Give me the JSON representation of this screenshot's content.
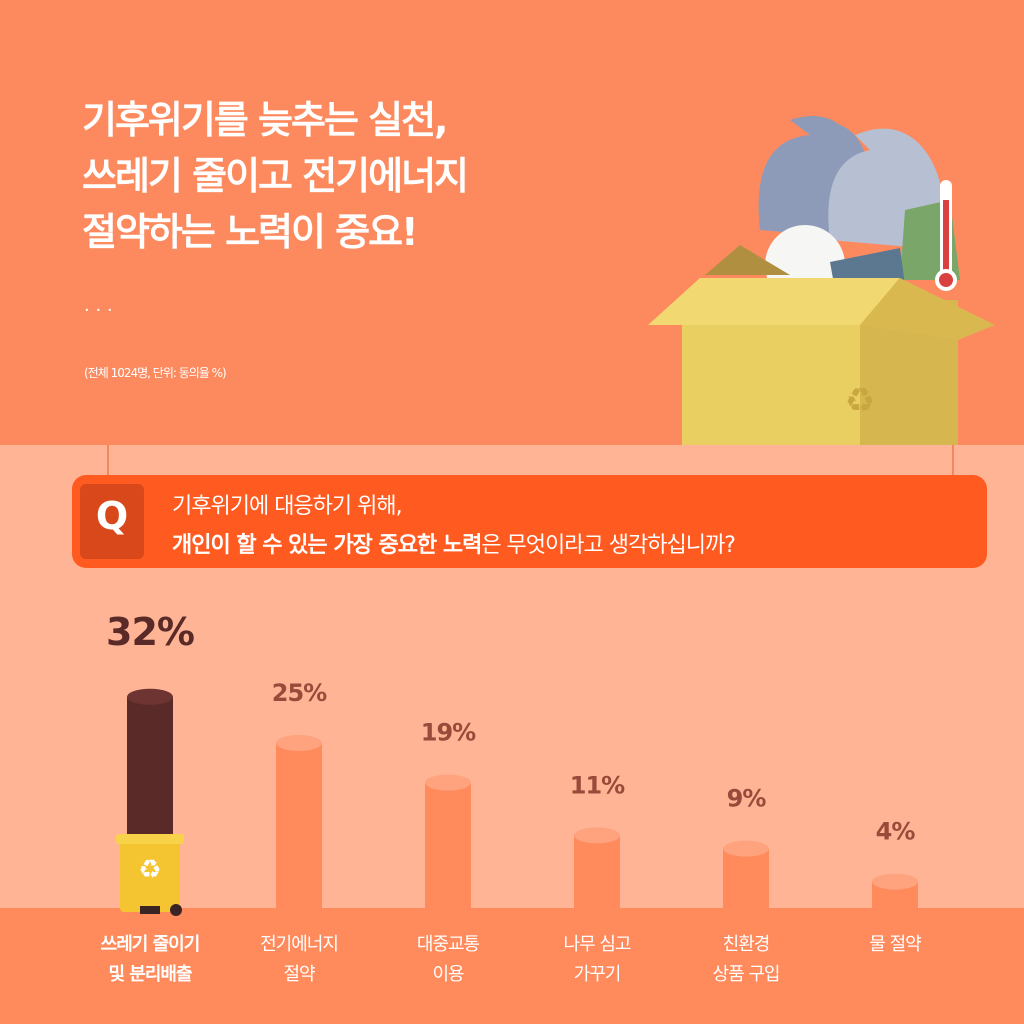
{
  "chart_data": {
    "type": "bar",
    "title": "기후위기를 늦추는 실천,\n쓰레기 줄이고 전기에너지\n절약하는 노력이 중요!",
    "ellipsis": "· · ·",
    "note": "(전체 1024명, 단위: 동의율 %)",
    "question_mark": "Q",
    "question_line1": "기후위기에 대응하기 위해,",
    "question_bold": "개인이 할 수 있는 가장 중요한 노력",
    "question_rest": "은 무엇이라고 생각하십니까?",
    "categories": [
      "쓰레기 줄이기\n및 분리배출",
      "전기에너지\n절약",
      "대중교통\n이용",
      "나무 심고\n가꾸기",
      "친환경\n상품 구입",
      "물 절약"
    ],
    "values": [
      32,
      25,
      19,
      11,
      9,
      4
    ],
    "value_labels": [
      "32%",
      "25%",
      "19%",
      "11%",
      "9%",
      "4%"
    ],
    "color": "#ff8a5c",
    "highlight_color": "#5a2a28"
  }
}
